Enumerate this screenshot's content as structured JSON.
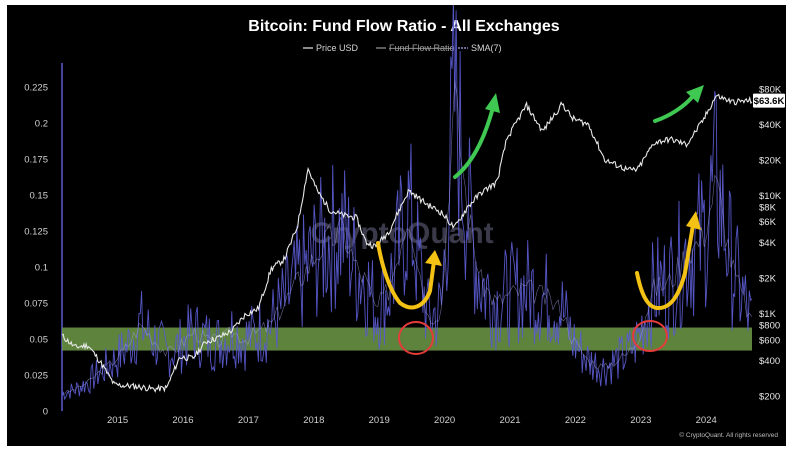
{
  "chart_data": {
    "type": "line",
    "title": "Bitcoin: Fund Flow Ratio - All Exchanges",
    "legend": [
      "Price USD",
      "Fund Flow Ratio",
      "SMA(7)"
    ],
    "legend_position": "top-center",
    "x": [
      2014.2,
      2014.4,
      2014.6,
      2014.8,
      2015.0,
      2015.2,
      2015.4,
      2015.6,
      2015.8,
      2016.0,
      2016.2,
      2016.4,
      2016.6,
      2016.8,
      2017.0,
      2017.2,
      2017.4,
      2017.6,
      2017.8,
      2017.96,
      2018.1,
      2018.3,
      2018.5,
      2018.7,
      2018.85,
      2019.0,
      2019.2,
      2019.5,
      2019.8,
      2020.0,
      2020.2,
      2020.4,
      2020.6,
      2020.85,
      2021.0,
      2021.3,
      2021.55,
      2021.85,
      2022.0,
      2022.25,
      2022.5,
      2022.85,
      2023.0,
      2023.25,
      2023.5,
      2023.75,
      2024.0,
      2024.2,
      2024.45,
      2024.75
    ],
    "series": [
      {
        "name": "Price USD",
        "axis": "right",
        "values": [
          650,
          520,
          540,
          380,
          250,
          245,
          240,
          230,
          235,
          430,
          420,
          580,
          630,
          720,
          980,
          1100,
          2400,
          2900,
          5500,
          17000,
          11000,
          7500,
          6800,
          6500,
          4000,
          3700,
          5000,
          11000,
          8300,
          7200,
          5300,
          8000,
          10500,
          13000,
          30000,
          58000,
          35000,
          60000,
          45000,
          40000,
          20000,
          16500,
          16500,
          28000,
          30000,
          27000,
          43000,
          70000,
          62000,
          63600
        ]
      },
      {
        "name": "Fund Flow Ratio",
        "axis": "left",
        "values": [
          0.012,
          0.015,
          0.02,
          0.028,
          0.035,
          0.045,
          0.06,
          0.05,
          0.04,
          0.045,
          0.055,
          0.05,
          0.048,
          0.055,
          0.05,
          0.055,
          0.06,
          0.075,
          0.09,
          0.1,
          0.11,
          0.12,
          0.125,
          0.1,
          0.09,
          0.07,
          0.085,
          0.14,
          0.065,
          0.07,
          0.22,
          0.14,
          0.09,
          0.075,
          0.08,
          0.085,
          0.08,
          0.07,
          0.05,
          0.035,
          0.03,
          0.04,
          0.05,
          0.085,
          0.09,
          0.11,
          0.12,
          0.16,
          0.1,
          0.06
        ]
      }
    ],
    "yaxis_left": {
      "range": [
        0,
        0.23
      ],
      "ticks": [
        "0",
        "0.025",
        "0.05",
        "0.075",
        "0.1",
        "0.125",
        "0.15",
        "0.175",
        "0.2",
        "0.225"
      ]
    },
    "yaxis_right": {
      "scale": "log",
      "range": [
        150,
        95000
      ],
      "ticks": [
        "$200",
        "$400",
        "$600",
        "$800",
        "$1K",
        "$2K",
        "$4K",
        "$6K",
        "$8K",
        "$10K",
        "$20K",
        "$40K",
        "$80K"
      ]
    },
    "xaxis": {
      "range": [
        2014.2,
        2024.75
      ],
      "ticks": [
        "2015",
        "2016",
        "2017",
        "2018",
        "2019",
        "2020",
        "2021",
        "2022",
        "2023",
        "2024"
      ]
    },
    "last_price_label": "$63.6K",
    "highlight_band": {
      "from": 0.042,
      "to": 0.058,
      "color": "#6f9a46"
    },
    "watermark": "CryptoQuant",
    "footer": "© CryptoQuant. All rights reserved",
    "colors": {
      "price": "#e8e8e8",
      "ffr": "#5a5acf",
      "sma": "#a7a7f0",
      "background": "#000000",
      "green_arrow": "#3fc952",
      "yellow_arrow": "#f3c214",
      "red_circle": "#e43b3b"
    }
  }
}
